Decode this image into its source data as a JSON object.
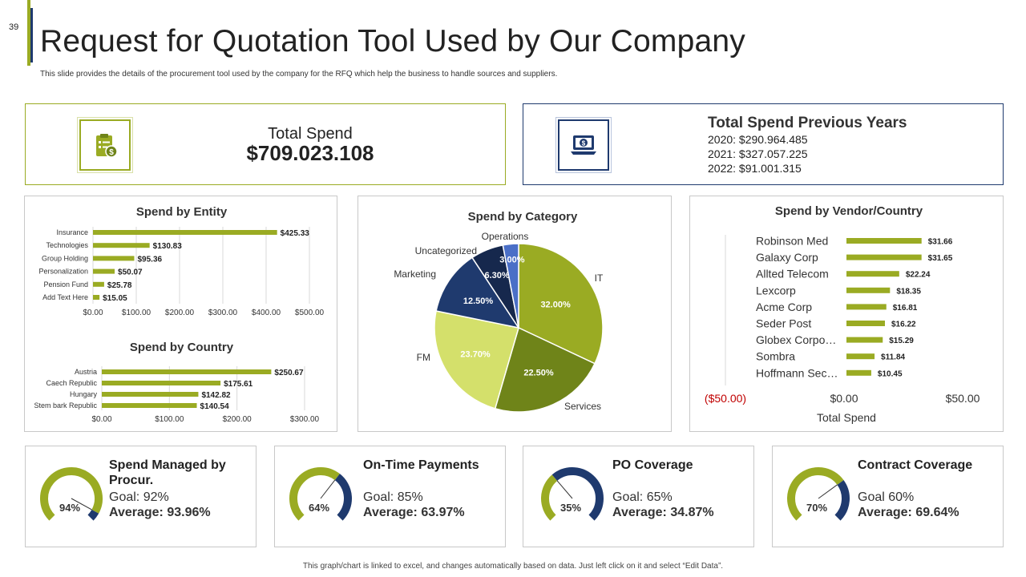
{
  "slide_number": "39",
  "title": "Request for Quotation Tool Used by Our Company",
  "subtitle": "This slide provides the details of the procurement tool used by the company for the RFQ  which help the business to handle sources and suppliers.",
  "total_spend": {
    "label": "Total Spend",
    "value": "$709.023.108",
    "icon": "clipboard-dollar-icon"
  },
  "previous_years": {
    "title": "Total Spend Previous Years",
    "icon": "laptop-dollar-icon",
    "lines": [
      "2020: $290.964.485",
      "2021: $327.057.225",
      "2022: $91.001.315"
    ]
  },
  "chart_data": [
    {
      "id": "entity",
      "type": "bar",
      "orientation": "horizontal",
      "title": "Spend by Entity",
      "categories": [
        "Insurance",
        "Technologies",
        "Group Holding",
        "Personalization",
        "Pension Fund",
        "Add Text Here"
      ],
      "values": [
        425.33,
        130.83,
        95.36,
        50.07,
        25.78,
        15.05
      ],
      "value_labels": [
        "$425.33",
        "$130.83",
        "$95.36",
        "$50.07",
        "$25.78",
        "$15.05"
      ],
      "xlim": [
        0,
        500
      ],
      "ticks": [
        "$0.00",
        "$100.00",
        "$200.00",
        "$300.00",
        "$400.00",
        "$500.00"
      ],
      "color": "#9aab23"
    },
    {
      "id": "country",
      "type": "bar",
      "orientation": "horizontal",
      "title": "Spend by Country",
      "categories": [
        "Austria",
        "Caech Republic",
        "Hungary",
        "Stem bark Republic"
      ],
      "values": [
        250.67,
        175.61,
        142.82,
        140.54
      ],
      "value_labels": [
        "$250.67",
        "$175.61",
        "$142.82",
        "$140.54"
      ],
      "xlim": [
        0,
        300
      ],
      "ticks": [
        "$0.00",
        "$100.00",
        "$200.00",
        "$300.00"
      ],
      "color": "#9aab23"
    },
    {
      "id": "category",
      "type": "pie",
      "title": "Spend by Category",
      "slices": [
        {
          "name": "IT",
          "value": 32.0,
          "label": "32.00%",
          "color": "#9aab23"
        },
        {
          "name": "Services",
          "value": 22.5,
          "label": "22.50%",
          "color": "#6f8419"
        },
        {
          "name": "FM",
          "value": 23.7,
          "label": "23.70%",
          "color": "#d4e06b"
        },
        {
          "name": "Marketing",
          "value": 12.5,
          "label": "12.50%",
          "color": "#1f3a6e"
        },
        {
          "name": "Uncategorized",
          "value": 6.3,
          "label": "6.30%",
          "color": "#16284d"
        },
        {
          "name": "Operations",
          "value": 3.0,
          "label": "3.00%",
          "color": "#4a6fc7"
        }
      ]
    },
    {
      "id": "vendor",
      "type": "bar",
      "orientation": "horizontal",
      "title": "Spend by Vendor/Country",
      "categories": [
        "Robinson Med",
        "Galaxy Corp",
        "Allted Telecom",
        "Lexcorp",
        "Acme Corp",
        "Seder Post",
        "Globex Corpo…",
        "Sombra",
        "Hoffmann Sec…"
      ],
      "values": [
        31.66,
        31.65,
        22.24,
        18.35,
        16.81,
        16.22,
        15.29,
        11.84,
        10.45
      ],
      "value_labels": [
        "$31.66",
        "$31.65",
        "$22.24",
        "$18.35",
        "$16.81",
        "$16.22",
        "$15.29",
        "$11.84",
        "$10.45"
      ],
      "xlim": [
        -50,
        50
      ],
      "ticks": [
        "($50.00)",
        "$0.00",
        "$50.00"
      ],
      "xlabel": "Total Spend",
      "color": "#9aab23",
      "negative_tick_color": "#c00000"
    }
  ],
  "kpis": [
    {
      "title": "Spend Managed by Procur.",
      "percent_label": "94%",
      "percent": 94,
      "goal": "Goal: 92%",
      "average": "Average: 93.96%"
    },
    {
      "title": "On-Time Payments",
      "percent_label": "64%",
      "percent": 64,
      "goal": "Goal: 85%",
      "average": "Average: 63.97%"
    },
    {
      "title": "PO Coverage",
      "percent_label": "35%",
      "percent": 35,
      "goal": "Goal: 65%",
      "average": "Average: 34.87%"
    },
    {
      "title": "Contract Coverage",
      "percent_label": "70%",
      "percent": 70,
      "goal": "Goal 60%",
      "average": "Average: 69.64%"
    }
  ],
  "colors": {
    "green": "#9aab23",
    "navy": "#1f3a6e"
  },
  "footer": "This graph/chart is linked to excel,  and changes automatically based on data. Just left click on it and select “Edit Data”."
}
